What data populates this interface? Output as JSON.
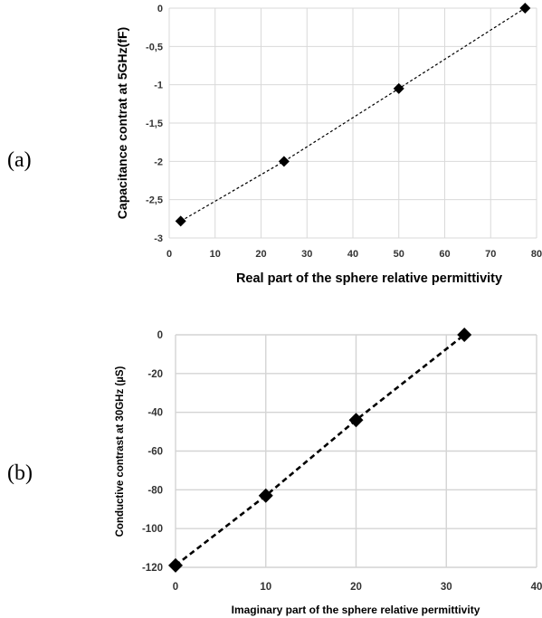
{
  "panels": {
    "a_label": "(a)",
    "b_label": "(b)"
  },
  "chart_data": [
    {
      "type": "line",
      "xlabel": "Real part of the sphere relative permittivity",
      "ylabel": "Capacitance contrat at 5GHz(fF)",
      "xlim": [
        0,
        80
      ],
      "ylim": [
        -3,
        0
      ],
      "xticks": [
        "0",
        "10",
        "20",
        "30",
        "40",
        "50",
        "60",
        "70",
        "80"
      ],
      "yticks": [
        "0",
        "-0,5",
        "-1",
        "-1,5",
        "-2",
        "-2,5",
        "-3"
      ],
      "grid": true,
      "marker": "diamond",
      "line_style": "dashed",
      "x": [
        2.5,
        25,
        50,
        77.5
      ],
      "y": [
        -2.78,
        -2.0,
        -1.05,
        0.0
      ]
    },
    {
      "type": "line",
      "xlabel": "Imaginary part of the sphere relative permittivity",
      "ylabel": "Conductive contrast at 30GHz (µS)",
      "xlim": [
        0,
        40
      ],
      "ylim": [
        -120,
        0
      ],
      "xticks": [
        "0",
        "10",
        "20",
        "30",
        "40"
      ],
      "yticks": [
        "0",
        "-20",
        "-40",
        "-60",
        "-80",
        "-100",
        "-120"
      ],
      "grid": true,
      "marker": "diamond",
      "line_style": "dashed",
      "x": [
        0,
        10,
        20,
        32
      ],
      "y": [
        -119,
        -83,
        -44,
        0
      ]
    }
  ]
}
